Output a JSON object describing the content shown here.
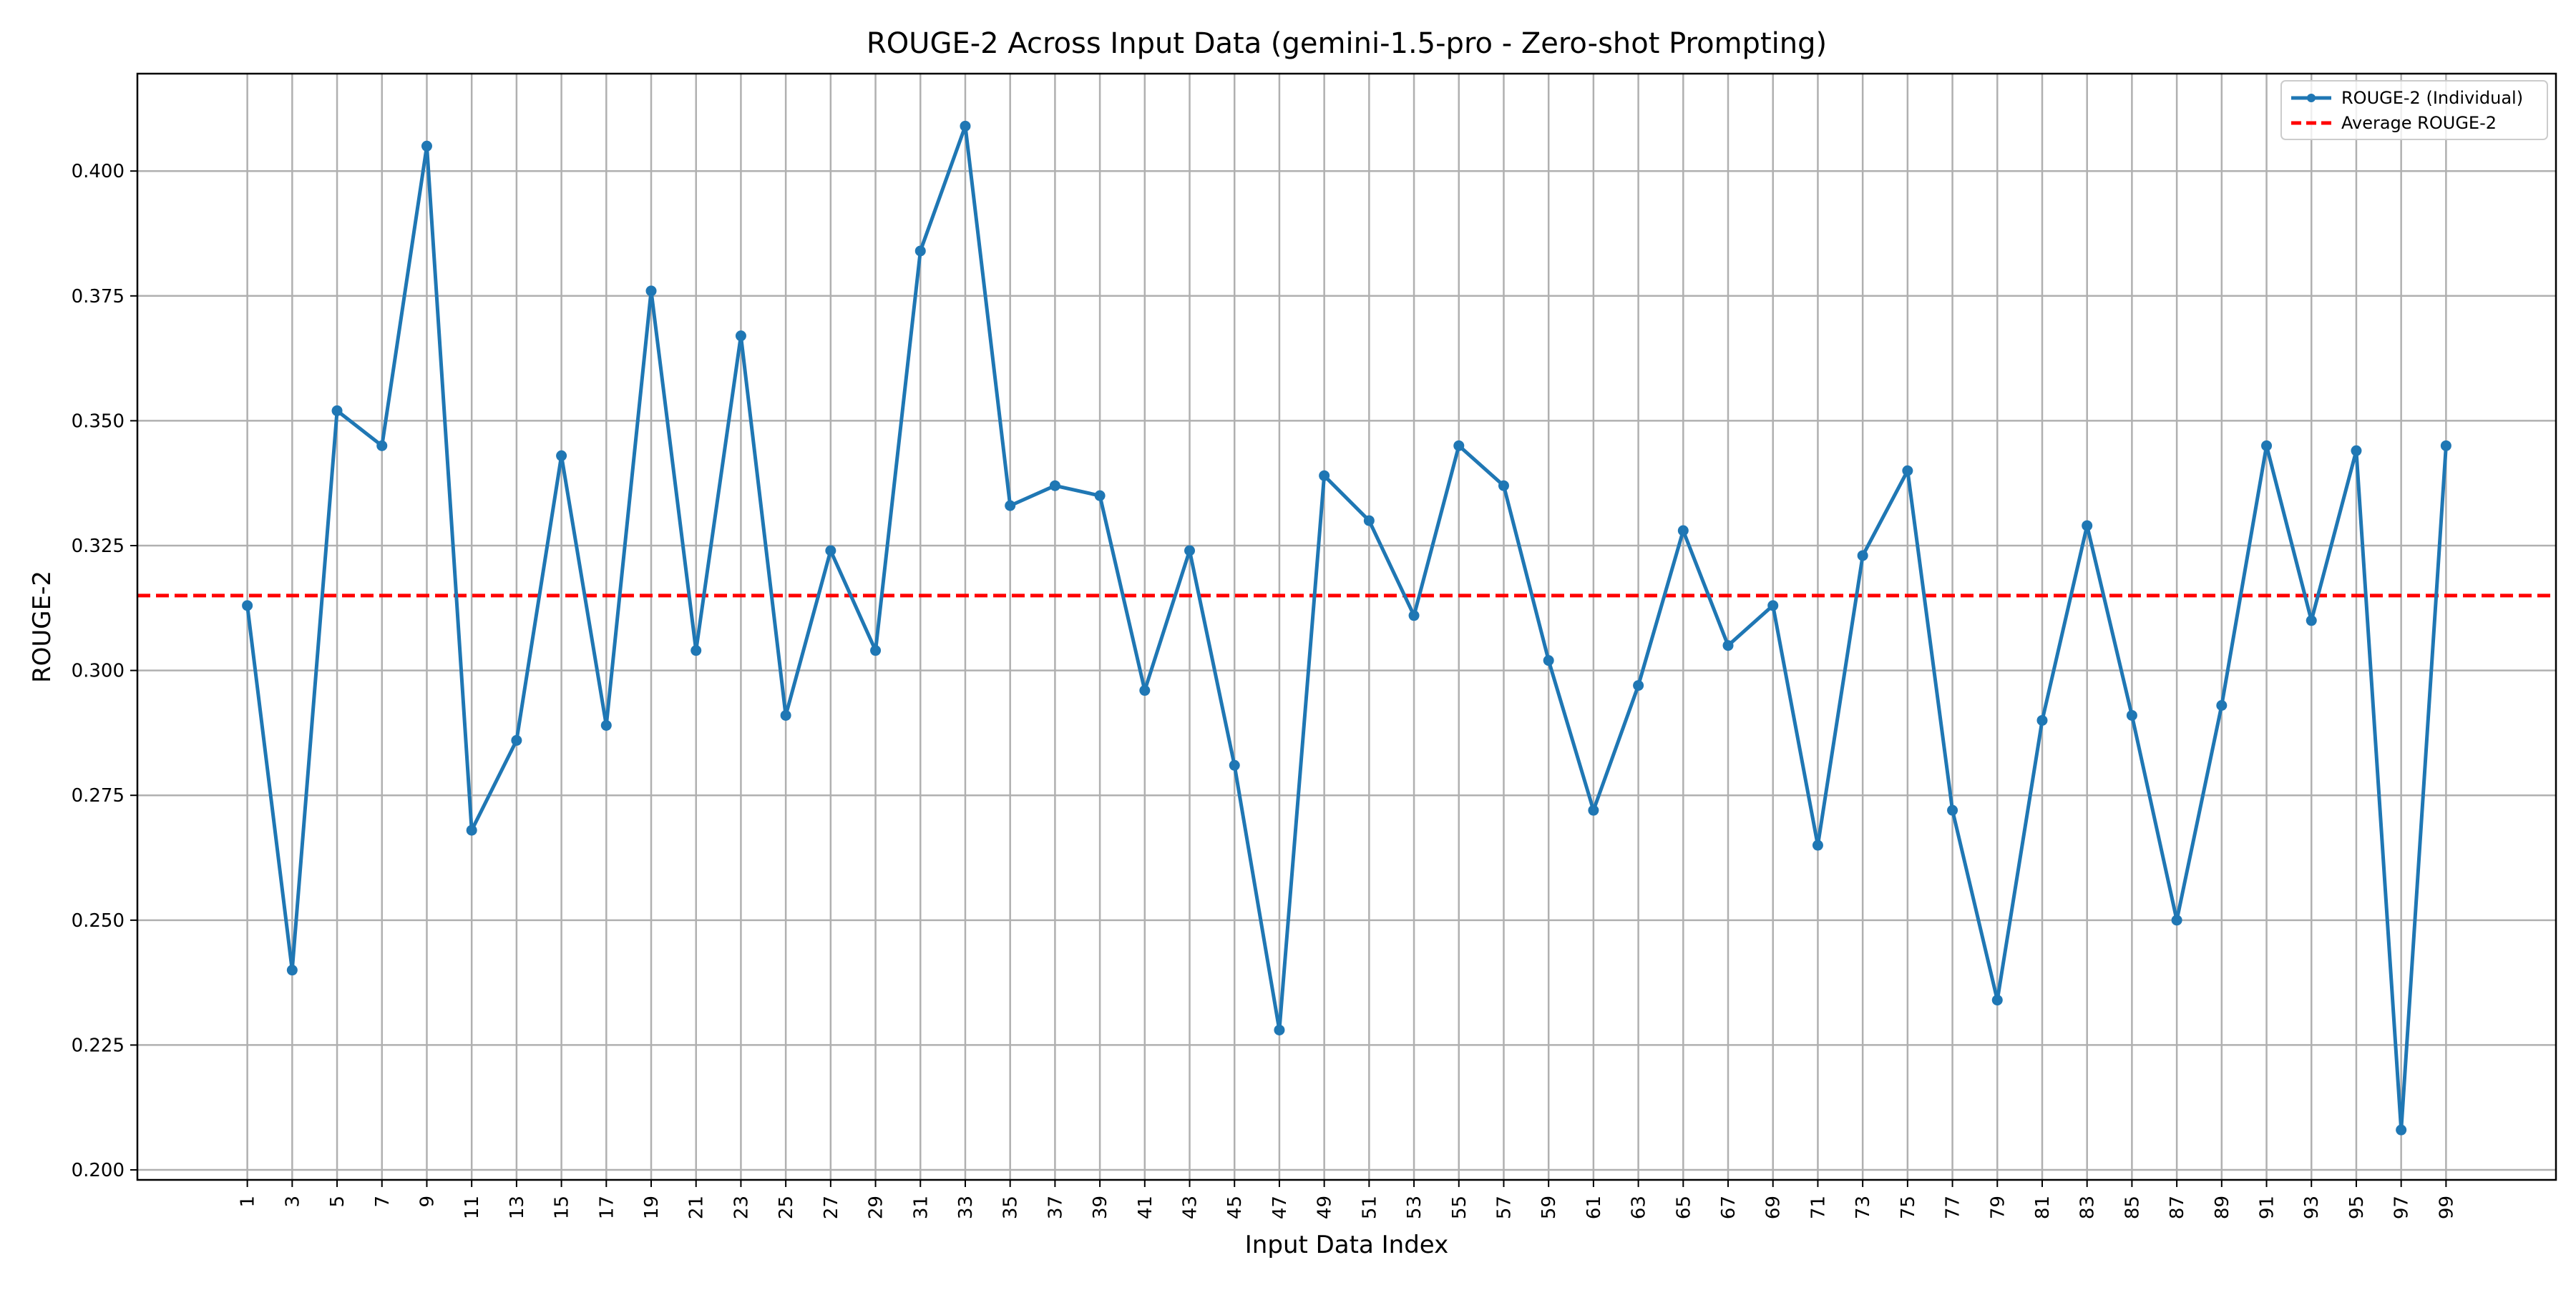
{
  "chart_data": {
    "type": "line",
    "title": "ROUGE-2 Across Input Data (gemini-1.5-pro - Zero-shot Prompting)",
    "xlabel": "Input Data Index",
    "ylabel": "ROUGE-2",
    "x": [
      1,
      3,
      5,
      7,
      9,
      11,
      13,
      15,
      17,
      19,
      21,
      23,
      25,
      27,
      29,
      31,
      33,
      35,
      37,
      39,
      41,
      43,
      45,
      47,
      49,
      51,
      53,
      55,
      57,
      59,
      61,
      63,
      65,
      67,
      69,
      71,
      73,
      75,
      77,
      79,
      81,
      83,
      85,
      87,
      89,
      91,
      93,
      95,
      97,
      99
    ],
    "x_ticks": [
      "1",
      "3",
      "5",
      "7",
      "9",
      "11",
      "13",
      "15",
      "17",
      "19",
      "21",
      "23",
      "25",
      "27",
      "29",
      "31",
      "33",
      "35",
      "37",
      "39",
      "41",
      "43",
      "45",
      "47",
      "49",
      "51",
      "53",
      "55",
      "57",
      "59",
      "61",
      "63",
      "65",
      "67",
      "69",
      "71",
      "73",
      "75",
      "77",
      "79",
      "81",
      "83",
      "85",
      "87",
      "89",
      "91",
      "93",
      "95",
      "97",
      "99"
    ],
    "y_ticks": [
      "0.200",
      "0.225",
      "0.250",
      "0.275",
      "0.300",
      "0.325",
      "0.350",
      "0.375",
      "0.400"
    ],
    "y_tick_values": [
      0.2,
      0.225,
      0.25,
      0.275,
      0.3,
      0.325,
      0.35,
      0.375,
      0.4
    ],
    "ylim": [
      0.198,
      0.4195
    ],
    "xlim": [
      -3.9,
      103.9
    ],
    "series": [
      {
        "name": "ROUGE-2 (Individual)",
        "color": "#1f77b4",
        "values": [
          0.313,
          0.24,
          0.352,
          0.345,
          0.405,
          0.268,
          0.286,
          0.343,
          0.289,
          0.376,
          0.304,
          0.367,
          0.291,
          0.324,
          0.304,
          0.384,
          0.409,
          0.333,
          0.337,
          0.335,
          0.296,
          0.324,
          0.281,
          0.228,
          0.339,
          0.33,
          0.311,
          0.345,
          0.337,
          0.302,
          0.272,
          0.297,
          0.328,
          0.305,
          0.313,
          0.265,
          0.323,
          0.34,
          0.272,
          0.234,
          0.29,
          0.329,
          0.291,
          0.25,
          0.293,
          0.345,
          0.31,
          0.344,
          0.208,
          0.345
        ]
      }
    ],
    "average": {
      "name": "Average ROUGE-2",
      "value": 0.315,
      "color": "#ff0000"
    },
    "grid": true,
    "legend_position": "top-right"
  }
}
